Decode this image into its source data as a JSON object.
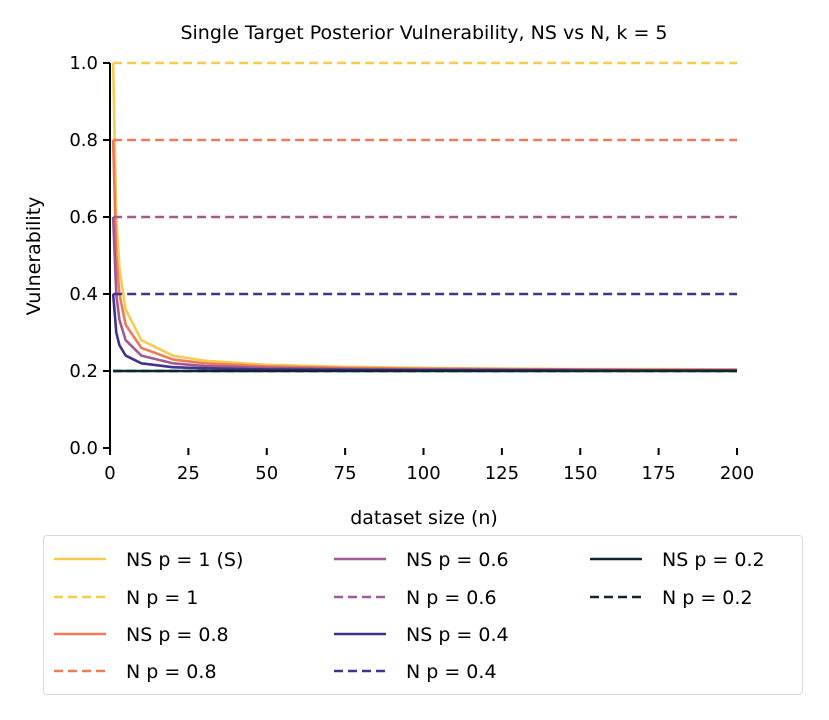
{
  "chart_data": {
    "type": "line",
    "title": "Single Target Posterior Vulnerability, NS vs N, k = 5",
    "xlabel": "dataset size (n)",
    "ylabel": "Vulnerability",
    "xlim": [
      0,
      200
    ],
    "ylim": [
      0,
      1
    ],
    "xticks": [
      "0",
      "25",
      "50",
      "75",
      "100",
      "125",
      "150",
      "175",
      "200"
    ],
    "yticks": [
      "0.0",
      "0.2",
      "0.4",
      "0.6",
      "0.8",
      "1.0"
    ],
    "grid": false,
    "legend_placement": "bottom",
    "x": [
      1,
      2,
      3,
      5,
      10,
      20,
      30,
      50,
      75,
      100,
      125,
      150,
      175,
      200
    ],
    "series": [
      {
        "name": "NS p = 1 (S)",
        "style": "solid",
        "color": "#f5cc50",
        "values": [
          1.0,
          0.6,
          0.467,
          0.36,
          0.28,
          0.24,
          0.227,
          0.216,
          0.211,
          0.208,
          0.206,
          0.205,
          0.205,
          0.204
        ]
      },
      {
        "name": "N p = 1",
        "style": "dashed",
        "color": "#f5cc50",
        "values": [
          1.0,
          1.0,
          1.0,
          1.0,
          1.0,
          1.0,
          1.0,
          1.0,
          1.0,
          1.0,
          1.0,
          1.0,
          1.0,
          1.0
        ]
      },
      {
        "name": "NS p = 0.8",
        "style": "solid",
        "color": "#ef7a56",
        "values": [
          0.8,
          0.5,
          0.4,
          0.32,
          0.26,
          0.23,
          0.22,
          0.212,
          0.208,
          0.206,
          0.205,
          0.204,
          0.203,
          0.203
        ]
      },
      {
        "name": "N p = 0.8",
        "style": "dashed",
        "color": "#ef7a56",
        "values": [
          0.8,
          0.8,
          0.8,
          0.8,
          0.8,
          0.8,
          0.8,
          0.8,
          0.8,
          0.8,
          0.8,
          0.8,
          0.8,
          0.8
        ]
      },
      {
        "name": "NS p = 0.6",
        "style": "solid",
        "color": "#a05a92",
        "values": [
          0.6,
          0.4,
          0.333,
          0.28,
          0.24,
          0.22,
          0.213,
          0.208,
          0.205,
          0.204,
          0.203,
          0.203,
          0.202,
          0.202
        ]
      },
      {
        "name": "N p = 0.6",
        "style": "dashed",
        "color": "#a05a92",
        "values": [
          0.6,
          0.6,
          0.6,
          0.6,
          0.6,
          0.6,
          0.6,
          0.6,
          0.6,
          0.6,
          0.6,
          0.6,
          0.6,
          0.6
        ]
      },
      {
        "name": "NS p = 0.4",
        "style": "solid",
        "color": "#45328f",
        "values": [
          0.4,
          0.3,
          0.267,
          0.24,
          0.22,
          0.21,
          0.207,
          0.204,
          0.203,
          0.202,
          0.202,
          0.201,
          0.201,
          0.201
        ]
      },
      {
        "name": "N p = 0.4",
        "style": "dashed",
        "color": "#45328f",
        "values": [
          0.4,
          0.4,
          0.4,
          0.4,
          0.4,
          0.4,
          0.4,
          0.4,
          0.4,
          0.4,
          0.4,
          0.4,
          0.4,
          0.4
        ]
      },
      {
        "name": "NS p = 0.2",
        "style": "solid",
        "color": "#0c2633",
        "values": [
          0.2,
          0.2,
          0.2,
          0.2,
          0.2,
          0.2,
          0.2,
          0.2,
          0.2,
          0.2,
          0.2,
          0.2,
          0.2,
          0.2
        ]
      },
      {
        "name": "N p = 0.2",
        "style": "dashed",
        "color": "#0c2633",
        "values": [
          0.2,
          0.2,
          0.2,
          0.2,
          0.2,
          0.2,
          0.2,
          0.2,
          0.2,
          0.2,
          0.2,
          0.2,
          0.2,
          0.2
        ]
      }
    ]
  }
}
